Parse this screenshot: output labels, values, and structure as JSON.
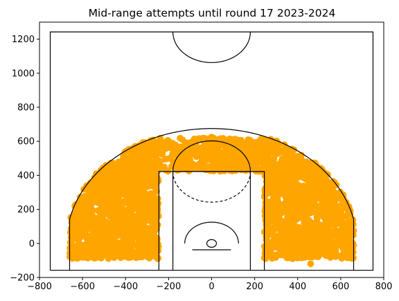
{
  "chart_data": {
    "type": "scatter",
    "title": "Mid-range attempts until round 17 2023-2024",
    "xlabel": "",
    "ylabel": "",
    "xlim": [
      -800,
      800
    ],
    "ylim": [
      -200,
      1300
    ],
    "x_ticks": [
      -800,
      -600,
      -400,
      -200,
      0,
      200,
      400,
      600,
      800
    ],
    "y_ticks": [
      -200,
      0,
      200,
      400,
      600,
      800,
      1000,
      1200
    ],
    "grid": false,
    "point_color": "#FFA500",
    "line_color": "#000000",
    "court": {
      "boundary": {
        "x_min": -750,
        "x_max": 750,
        "y_min": -157.5,
        "y_max": 1242.5
      },
      "three_point_corner_x": 660,
      "three_point_corner_top_y": 142,
      "three_point_radius": 675,
      "paint_outer": {
        "x_min": -245,
        "x_max": 245,
        "y_max": 422.5
      },
      "paint_inner": {
        "x_min": -180,
        "x_max": 180,
        "y_max": 422.5
      },
      "free_throw_circle_radius": 180,
      "restricted_area_radius": 125,
      "backboard": {
        "x_min": -90,
        "x_max": 90,
        "y": -37.5
      },
      "rim": {
        "x": 0,
        "y": 0,
        "radius": 22.5
      },
      "center_circle": {
        "y": 1242.5,
        "radius": 180
      }
    },
    "series": [
      {
        "points_summary": "dense clusters in both mid-range wings and the top of the key",
        "clusters": [
          {
            "x_range": [
              -660,
              -240
            ],
            "y_range": [
              -90,
              480
            ],
            "count": 1100
          },
          {
            "x_range": [
              240,
              660
            ],
            "y_range": [
              -90,
              480
            ],
            "count": 1100
          },
          {
            "x_range": [
              -420,
              420
            ],
            "y_range": [
              420,
              620
            ],
            "count": 700
          }
        ],
        "notable_points": [
          {
            "x": -610,
            "y": 55
          },
          {
            "x": -640,
            "y": -80
          },
          {
            "x": 660,
            "y": 75
          },
          {
            "x": 460,
            "y": -120
          },
          {
            "x": 645,
            "y": 190
          },
          {
            "x": 0,
            "y": 625
          },
          {
            "x": 170,
            "y": 610
          },
          {
            "x": 260,
            "y": 580
          },
          {
            "x": -320,
            "y": 540
          }
        ]
      }
    ]
  }
}
